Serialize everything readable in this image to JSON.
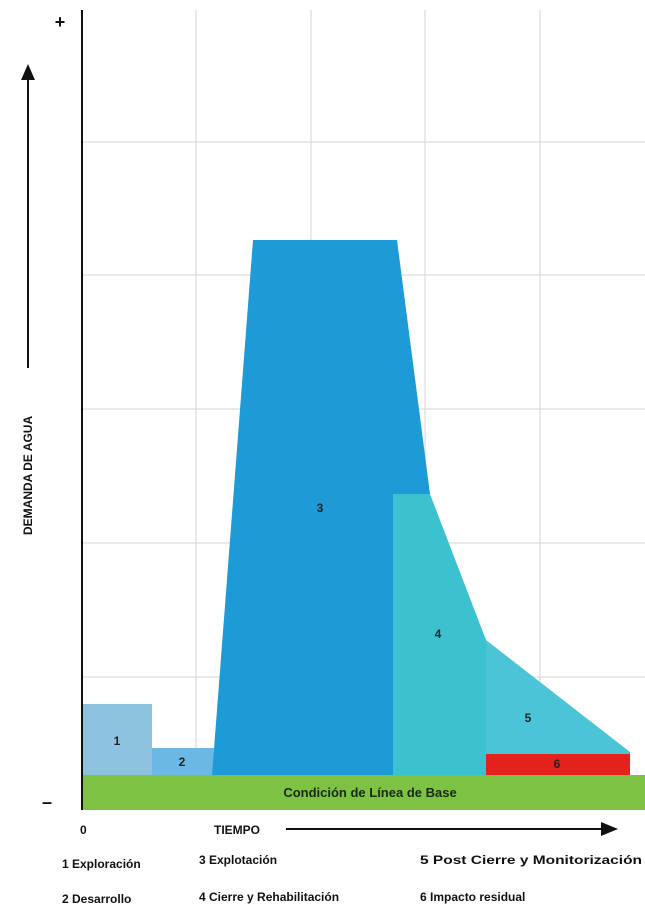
{
  "axes": {
    "y_label": "DEMANDA DE AGUA",
    "y_plus": "+",
    "y_minus": "–",
    "x_label": "TIEMPO",
    "x_zero": "0"
  },
  "phases": [
    {
      "id": "1",
      "label": "1",
      "color": "#8ec3e0"
    },
    {
      "id": "2",
      "label": "2",
      "color": "#6cb8e4"
    },
    {
      "id": "3",
      "label": "3",
      "color": "#1e9ad6"
    },
    {
      "id": "4",
      "label": "4",
      "color": "#3cc2cf"
    },
    {
      "id": "5",
      "label": "5",
      "color": "#4cc4d8"
    },
    {
      "id": "6",
      "label": "6",
      "color": "#e3231b"
    }
  ],
  "baseline": {
    "label": "Condición de Línea de Base",
    "color": "#7dc243"
  },
  "legend": [
    "1 Exploración",
    "3 Explotación",
    "5 Post Cierre y Monitorización",
    "2 Desarrollo",
    "4 Cierre y Rehabilitación",
    "6 Impacto residual"
  ]
}
